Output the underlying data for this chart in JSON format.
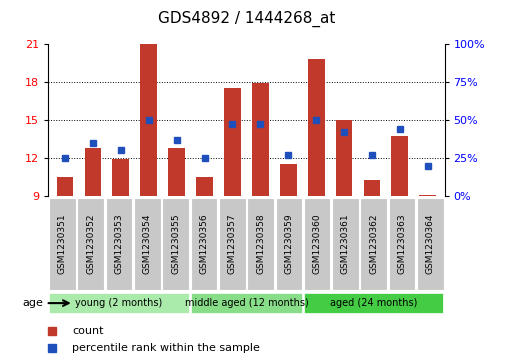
{
  "title": "GDS4892 / 1444268_at",
  "samples": [
    "GSM1230351",
    "GSM1230352",
    "GSM1230353",
    "GSM1230354",
    "GSM1230355",
    "GSM1230356",
    "GSM1230357",
    "GSM1230358",
    "GSM1230359",
    "GSM1230360",
    "GSM1230361",
    "GSM1230362",
    "GSM1230363",
    "GSM1230364"
  ],
  "counts": [
    10.5,
    12.8,
    11.9,
    21.0,
    12.8,
    10.5,
    17.5,
    17.9,
    11.5,
    19.8,
    15.0,
    10.3,
    13.7,
    9.1
  ],
  "percentiles": [
    25,
    35,
    30,
    50,
    37,
    25,
    47,
    47,
    27,
    50,
    42,
    27,
    44,
    20
  ],
  "ylim_left": [
    9,
    21
  ],
  "ylim_right": [
    0,
    100
  ],
  "yticks_left": [
    9,
    12,
    15,
    18,
    21
  ],
  "yticks_right": [
    0,
    25,
    50,
    75,
    100
  ],
  "bar_color": "#C0392B",
  "dot_color": "#1F4FBB",
  "groups": [
    {
      "label": "young (2 months)",
      "start": 0,
      "end": 5,
      "color": "#AAEAAA"
    },
    {
      "label": "middle aged (12 months)",
      "start": 5,
      "end": 9,
      "color": "#88DD88"
    },
    {
      "label": "aged (24 months)",
      "start": 9,
      "end": 14,
      "color": "#44CC44"
    }
  ],
  "legend_items": [
    {
      "label": "count",
      "color": "#C0392B"
    },
    {
      "label": "percentile rank within the sample",
      "color": "#1F4FBB"
    }
  ],
  "age_label": "age",
  "title_fontsize": 11,
  "tick_fontsize": 6.5,
  "bar_width": 0.6
}
